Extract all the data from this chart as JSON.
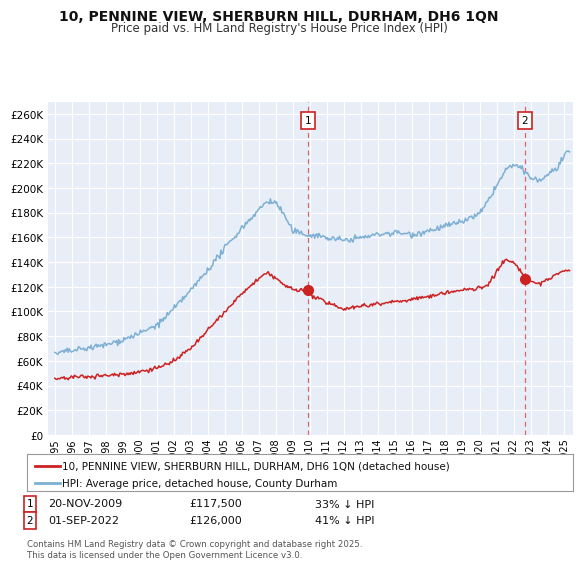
{
  "title": "10, PENNINE VIEW, SHERBURN HILL, DURHAM, DH6 1QN",
  "subtitle": "Price paid vs. HM Land Registry's House Price Index (HPI)",
  "ylabel_ticks": [
    "£0",
    "£20K",
    "£40K",
    "£60K",
    "£80K",
    "£100K",
    "£120K",
    "£140K",
    "£160K",
    "£180K",
    "£200K",
    "£220K",
    "£240K",
    "£260K"
  ],
  "ytick_values": [
    0,
    20000,
    40000,
    60000,
    80000,
    100000,
    120000,
    140000,
    160000,
    180000,
    200000,
    220000,
    240000,
    260000
  ],
  "ylim": [
    0,
    270000
  ],
  "sale1_date": "20-NOV-2009",
  "sale1_price": 117500,
  "sale1_label": "33% ↓ HPI",
  "sale2_date": "01-SEP-2022",
  "sale2_price": 126000,
  "sale2_label": "41% ↓ HPI",
  "sale1_x": 2009.89,
  "sale2_x": 2022.67,
  "red_line_color": "#cc2222",
  "blue_line_color": "#7eb0d4",
  "background_color": "#e8eef8",
  "grid_color": "#ffffff",
  "legend_label_red": "10, PENNINE VIEW, SHERBURN HILL, DURHAM, DH6 1QN (detached house)",
  "legend_label_blue": "HPI: Average price, detached house, County Durham",
  "footnote": "Contains HM Land Registry data © Crown copyright and database right 2025.\nThis data is licensed under the Open Government Licence v3.0.",
  "title_fontsize": 10,
  "subtitle_fontsize": 8.5
}
